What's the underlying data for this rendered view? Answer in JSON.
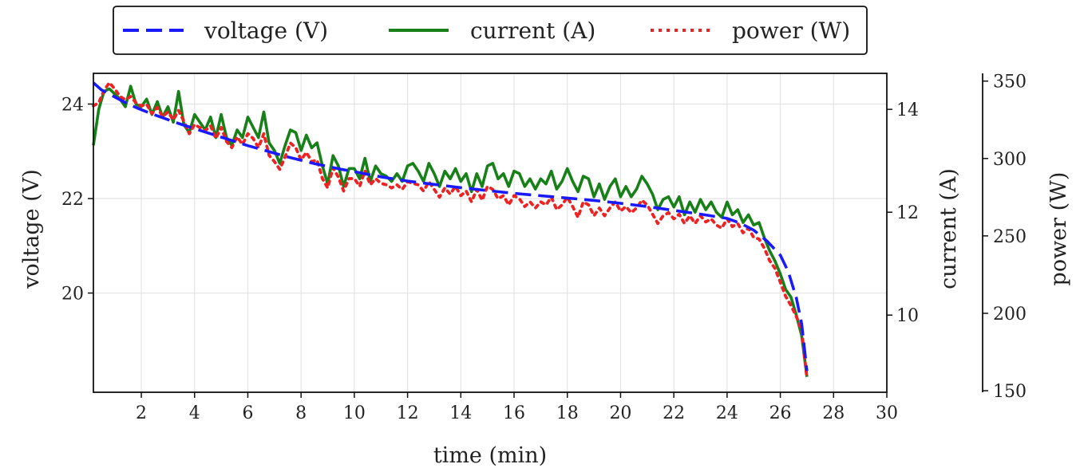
{
  "chart_data": {
    "type": "line",
    "title": "",
    "xlabel": "time (min)",
    "xlim": [
      0.2,
      30
    ],
    "xticks": [
      2,
      4,
      6,
      8,
      10,
      12,
      14,
      16,
      18,
      20,
      22,
      24,
      26,
      28,
      30
    ],
    "grid": true,
    "legend_position": "top-center",
    "axes": {
      "voltage": {
        "label": "voltage (V)",
        "side": "left",
        "lim": [
          17.9,
          24.65
        ],
        "ticks": [
          20,
          22,
          24
        ]
      },
      "current": {
        "label": "current (A)",
        "side": "right",
        "lim": [
          8.5,
          14.7
        ],
        "ticks": [
          10,
          12,
          14
        ]
      },
      "power": {
        "label": "power (W)",
        "side": "right-outer",
        "lim": [
          149,
          355
        ],
        "ticks": [
          150,
          200,
          250,
          300,
          350
        ]
      }
    },
    "series": [
      {
        "name": "voltage (V)",
        "axis": "voltage",
        "color": "#1a1aff",
        "style": "dashed",
        "x": [
          0.2,
          0.5,
          1,
          1.5,
          2,
          2.5,
          3,
          3.5,
          4,
          4.5,
          5,
          5.5,
          6,
          6.5,
          7,
          7.5,
          8,
          8.5,
          9,
          9.5,
          10,
          11,
          12,
          13,
          14,
          15,
          16,
          17,
          18,
          19,
          20,
          21,
          22,
          23,
          24,
          24.5,
          25,
          25.5,
          26,
          26.3,
          26.6,
          26.8,
          27
        ],
        "y": [
          24.45,
          24.3,
          24.15,
          24.0,
          23.88,
          23.77,
          23.67,
          23.57,
          23.48,
          23.39,
          23.3,
          23.21,
          23.12,
          23.04,
          22.96,
          22.88,
          22.81,
          22.74,
          22.68,
          22.62,
          22.57,
          22.46,
          22.37,
          22.3,
          22.23,
          22.17,
          22.11,
          22.06,
          22.01,
          21.96,
          21.9,
          21.83,
          21.75,
          21.67,
          21.58,
          21.48,
          21.33,
          21.1,
          20.8,
          20.45,
          19.9,
          19.35,
          18.35
        ]
      },
      {
        "name": "current (A)",
        "axis": "current",
        "color": "#188018",
        "style": "solid",
        "x": [
          0.2,
          0.4,
          0.6,
          0.8,
          1.0,
          1.2,
          1.4,
          1.6,
          1.8,
          2.0,
          2.2,
          2.4,
          2.6,
          2.8,
          3.0,
          3.2,
          3.4,
          3.6,
          3.8,
          4.0,
          4.2,
          4.4,
          4.6,
          4.8,
          5.0,
          5.2,
          5.4,
          5.6,
          5.8,
          6.0,
          6.2,
          6.4,
          6.6,
          6.8,
          7.0,
          7.2,
          7.4,
          7.6,
          7.8,
          8.0,
          8.2,
          8.4,
          8.6,
          8.8,
          9.0,
          9.2,
          9.4,
          9.6,
          9.8,
          10.0,
          10.2,
          10.4,
          10.6,
          10.8,
          11.0,
          11.2,
          11.4,
          11.6,
          11.8,
          12.0,
          12.2,
          12.4,
          12.6,
          12.8,
          13.0,
          13.2,
          13.4,
          13.6,
          13.8,
          14.0,
          14.2,
          14.4,
          14.6,
          14.8,
          15.0,
          15.2,
          15.4,
          15.6,
          15.8,
          16.0,
          16.2,
          16.4,
          16.6,
          16.8,
          17.0,
          17.2,
          17.4,
          17.6,
          17.8,
          18.0,
          18.2,
          18.4,
          18.6,
          18.8,
          19.0,
          19.2,
          19.4,
          19.6,
          19.8,
          20.0,
          20.2,
          20.4,
          20.6,
          20.8,
          21.0,
          21.2,
          21.4,
          21.6,
          21.8,
          22.0,
          22.2,
          22.4,
          22.6,
          22.8,
          23.0,
          23.2,
          23.4,
          23.6,
          23.8,
          24.0,
          24.2,
          24.4,
          24.6,
          24.8,
          25.0,
          25.2,
          25.4,
          25.6,
          25.8,
          26.0,
          26.2,
          26.4,
          26.6,
          26.8,
          27.0
        ],
        "y": [
          13.3,
          14.0,
          14.35,
          14.4,
          14.3,
          14.2,
          14.05,
          14.45,
          14.1,
          14.05,
          14.2,
          13.9,
          14.15,
          13.85,
          14.05,
          13.75,
          14.35,
          13.7,
          13.55,
          13.9,
          13.75,
          13.6,
          13.85,
          13.45,
          13.9,
          13.45,
          13.3,
          13.6,
          13.45,
          13.85,
          13.65,
          13.45,
          13.95,
          13.35,
          13.2,
          12.95,
          13.3,
          13.6,
          13.55,
          13.2,
          13.5,
          13.25,
          13.35,
          12.9,
          12.55,
          13.1,
          12.9,
          12.5,
          12.85,
          12.85,
          12.65,
          13.05,
          12.6,
          12.9,
          12.75,
          12.7,
          12.6,
          12.75,
          12.6,
          12.9,
          12.95,
          12.8,
          12.6,
          12.95,
          12.75,
          12.5,
          12.8,
          12.65,
          12.85,
          12.6,
          12.75,
          12.4,
          12.75,
          12.5,
          12.9,
          12.95,
          12.65,
          12.75,
          12.5,
          12.8,
          12.75,
          12.5,
          12.65,
          12.45,
          12.65,
          12.55,
          12.8,
          12.45,
          12.6,
          12.85,
          12.6,
          12.4,
          12.7,
          12.65,
          12.3,
          12.55,
          12.25,
          12.5,
          12.65,
          12.3,
          12.5,
          12.3,
          12.45,
          12.7,
          12.55,
          12.35,
          12.05,
          12.25,
          12.3,
          12.1,
          12.3,
          11.95,
          12.2,
          12.0,
          12.25,
          12.05,
          12.2,
          12.0,
          11.9,
          12.2,
          11.95,
          12.05,
          11.8,
          11.95,
          11.75,
          11.8,
          11.5,
          11.25,
          11.05,
          10.8,
          10.5,
          10.35,
          10.0,
          9.6,
          8.8
        ]
      },
      {
        "name": "power (W)",
        "axis": "power",
        "color": "#ee2222",
        "style": "dotted",
        "x": [
          0.2,
          0.4,
          0.6,
          0.8,
          1.0,
          1.2,
          1.4,
          1.6,
          1.8,
          2.0,
          2.2,
          2.4,
          2.6,
          2.8,
          3.0,
          3.2,
          3.4,
          3.6,
          3.8,
          4.0,
          4.2,
          4.4,
          4.6,
          4.8,
          5.0,
          5.2,
          5.4,
          5.6,
          5.8,
          6.0,
          6.2,
          6.4,
          6.6,
          6.8,
          7.0,
          7.2,
          7.4,
          7.6,
          7.8,
          8.0,
          8.2,
          8.4,
          8.6,
          8.8,
          9.0,
          9.2,
          9.4,
          9.6,
          9.8,
          10.0,
          10.2,
          10.4,
          10.6,
          10.8,
          11.0,
          11.2,
          11.4,
          11.6,
          11.8,
          12.0,
          12.2,
          12.4,
          12.6,
          12.8,
          13.0,
          13.2,
          13.4,
          13.6,
          13.8,
          14.0,
          14.2,
          14.4,
          14.6,
          14.8,
          15.0,
          15.2,
          15.4,
          15.6,
          15.8,
          16.0,
          16.2,
          16.4,
          16.6,
          16.8,
          17.0,
          17.2,
          17.4,
          17.6,
          17.8,
          18.0,
          18.2,
          18.4,
          18.6,
          18.8,
          19.0,
          19.2,
          19.4,
          19.6,
          19.8,
          20.0,
          20.2,
          20.4,
          20.6,
          20.8,
          21.0,
          21.2,
          21.4,
          21.6,
          21.8,
          22.0,
          22.2,
          22.4,
          22.6,
          22.8,
          23.0,
          23.2,
          23.4,
          23.6,
          23.8,
          24.0,
          24.2,
          24.4,
          24.6,
          24.8,
          25.0,
          25.2,
          25.4,
          25.6,
          25.8,
          26.0,
          26.2,
          26.4,
          26.6,
          26.8,
          27.0
        ],
        "y": [
          334,
          336,
          344,
          349,
          345,
          340,
          338,
          340,
          336,
          334,
          335,
          329,
          333,
          327,
          330,
          325,
          331,
          324,
          316,
          322,
          320,
          318,
          321,
          313,
          320,
          311,
          307,
          314,
          309,
          316,
          313,
          307,
          316,
          302,
          298,
          293,
          301,
          310,
          307,
          299,
          304,
          298,
          299,
          287,
          281,
          294,
          288,
          279,
          287,
          287,
          282,
          292,
          283,
          287,
          284,
          283,
          281,
          283,
          280,
          285,
          284,
          283,
          279,
          285,
          280,
          275,
          281,
          277,
          282,
          276,
          279,
          272,
          280,
          273,
          282,
          280,
          274,
          276,
          270,
          276,
          274,
          269,
          272,
          268,
          272,
          270,
          275,
          267,
          270,
          275,
          269,
          262,
          272,
          270,
          263,
          268,
          263,
          268,
          272,
          266,
          269,
          265,
          268,
          273,
          270,
          264,
          258,
          263,
          265,
          261,
          264,
          258,
          263,
          258,
          263,
          259,
          261,
          257,
          255,
          261,
          256,
          258,
          252,
          255,
          249,
          248,
          242,
          234,
          229,
          220,
          211,
          205,
          198,
          189,
          158
        ]
      }
    ]
  },
  "legend": {
    "items": [
      {
        "label": "voltage (V)",
        "color": "#1a1aff",
        "style": "dashed"
      },
      {
        "label": "current (A)",
        "color": "#188018",
        "style": "solid"
      },
      {
        "label": "power (W)",
        "color": "#ee2222",
        "style": "dotted"
      }
    ]
  }
}
